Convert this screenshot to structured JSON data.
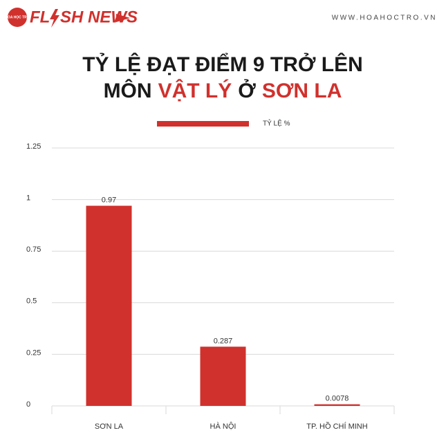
{
  "header": {
    "logo_badge": "HOA HỌC TRÒ",
    "brand_left": "FL",
    "brand_right": "SH NEWS",
    "website": "WWW.HOAHOCTRO.VN"
  },
  "chart_data": {
    "type": "bar",
    "title_line1": "TỶ LỆ ĐẠT ĐIỂM 9 TRỞ LÊN",
    "title_line2": [
      {
        "text": "MÔN",
        "color": "#1a1a1a"
      },
      {
        "text": "VẬT LÝ",
        "color": "#d0312d"
      },
      {
        "text": "Ở",
        "color": "#1a1a1a"
      },
      {
        "text": "SƠN LA",
        "color": "#d0312d"
      }
    ],
    "categories": [
      "SƠN LA",
      "HÀ NỘI",
      "TP. HỒ CHÍ MINH"
    ],
    "series": [
      {
        "name": "TỶ LỆ %",
        "color": "#d0312d",
        "values": [
          0.97,
          0.287,
          0.0078
        ]
      }
    ],
    "ylim": [
      0,
      1.25
    ],
    "yticks": [
      0,
      0.25,
      0.5,
      0.75,
      1,
      1.25
    ],
    "grid": true,
    "legend": "top"
  }
}
